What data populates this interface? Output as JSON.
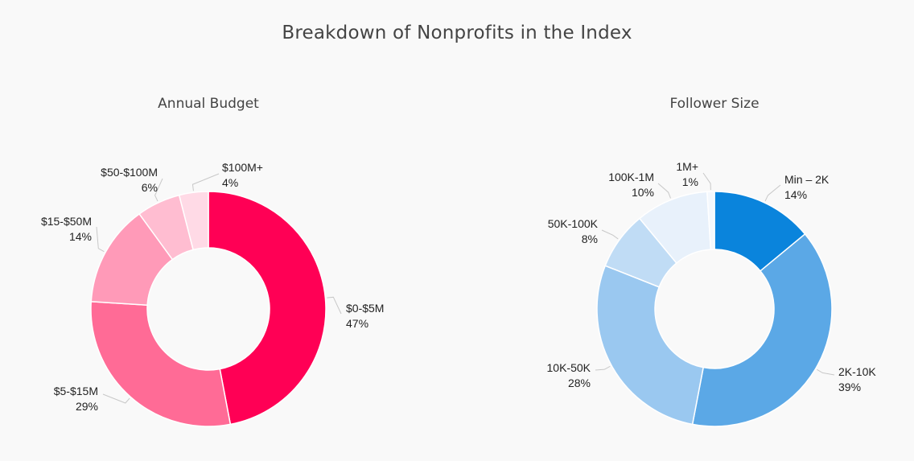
{
  "page": {
    "title": "Breakdown of Nonprofits in the Index"
  },
  "chart_data": [
    {
      "type": "pie",
      "title": "Annual Budget",
      "donut": true,
      "categories": [
        "$0-$5M",
        "$5-$15M",
        "$15-$50M",
        "$50-$100M",
        "$100M+"
      ],
      "values": [
        47,
        29,
        14,
        6,
        4
      ],
      "value_labels": [
        "47%",
        "29%",
        "14%",
        "6%",
        "4%"
      ],
      "colors": [
        "#ff0055",
        "#ff6b96",
        "#ff9ab8",
        "#ffbdd1",
        "#ffdae6"
      ]
    },
    {
      "type": "pie",
      "title": "Follower Size",
      "donut": true,
      "categories": [
        "Min – 2K",
        "2K-10K",
        "10K-50K",
        "50K-100K",
        "100K-1M",
        "1M+"
      ],
      "values": [
        14,
        39,
        28,
        8,
        10,
        1
      ],
      "value_labels": [
        "14%",
        "39%",
        "28%",
        "8%",
        "10%",
        "1%"
      ],
      "colors": [
        "#0a84dc",
        "#5ba8e6",
        "#9ac8f0",
        "#c0dcf5",
        "#e8f1fb",
        "#f4f8fd"
      ]
    }
  ]
}
